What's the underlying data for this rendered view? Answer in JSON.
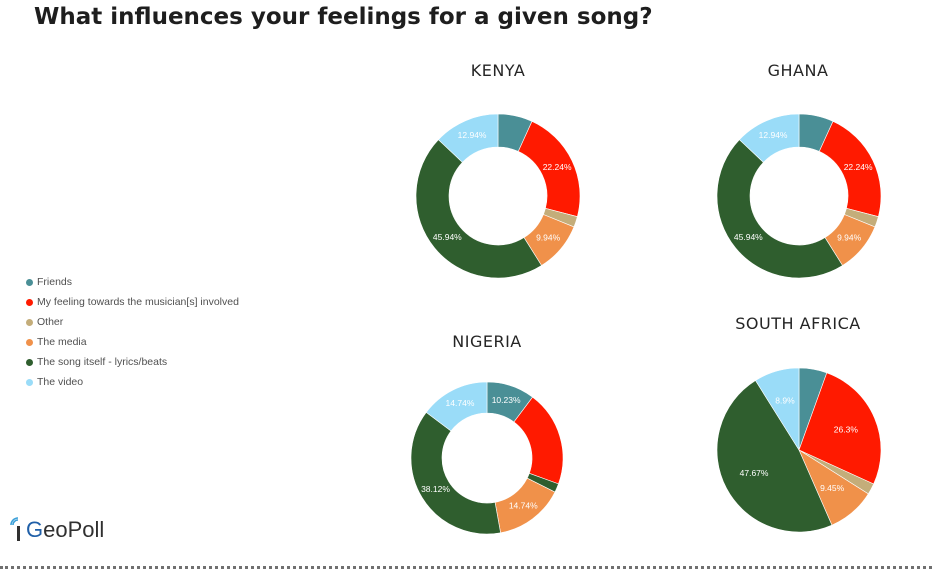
{
  "title": "What influences your feelings for a given song?",
  "legend": [
    {
      "label": "Friends",
      "color": "#4a8f96"
    },
    {
      "label": "My feeling towards the musician[s] involved",
      "color": "#ff1a00"
    },
    {
      "label": "Other",
      "color": "#c4ad7a"
    },
    {
      "label": "The media",
      "color": "#f0914a"
    },
    {
      "label": "The song itself - lyrics/beats",
      "color": "#2f5e2e"
    },
    {
      "label": "The video",
      "color": "#9adcf8"
    }
  ],
  "logo": {
    "prefix": "G",
    "rest": "eoPoll"
  },
  "chart_data": [
    {
      "type": "pie",
      "donut": true,
      "title": "KENYA",
      "categories": [
        "Friends",
        "My feeling towards the musician[s] involved",
        "Other",
        "The media",
        "The song itself - lyrics/beats",
        "The video"
      ],
      "values": [
        6.8,
        22.24,
        2.1,
        9.94,
        45.94,
        12.94
      ],
      "data_labels": [
        "",
        "22.24%",
        "",
        "9.94%",
        "45.94%",
        "12.94%"
      ]
    },
    {
      "type": "pie",
      "donut": true,
      "title": "GHANA",
      "categories": [
        "Friends",
        "My feeling towards the musician[s] involved",
        "Other",
        "The media",
        "The song itself - lyrics/beats",
        "The video"
      ],
      "values": [
        6.8,
        22.24,
        2.1,
        9.94,
        45.94,
        12.94
      ],
      "data_labels": [
        "",
        "22.24%",
        "",
        "9.94%",
        "45.94%",
        "12.94%"
      ]
    },
    {
      "type": "pie",
      "donut": true,
      "title": "NIGERIA",
      "categories": [
        "Friends",
        "My feeling towards the musician[s] involved",
        "The song itself - lyrics/beats",
        "The media",
        "The song itself - lyrics/beats",
        "The video"
      ],
      "values": [
        10.23,
        20.3,
        1.87,
        14.74,
        38.12,
        14.74
      ],
      "data_labels": [
        "10.23%",
        "",
        "",
        "14.74%",
        "38.12%",
        "14.74%"
      ]
    },
    {
      "type": "pie",
      "donut": false,
      "title": "SOUTH AFRICA",
      "categories": [
        "Friends",
        "My feeling towards the musician[s] involved",
        "Other",
        "The media",
        "The song itself - lyrics/beats",
        "The video"
      ],
      "values": [
        5.5,
        26.3,
        2.18,
        9.45,
        47.67,
        8.9
      ],
      "data_labels": [
        "",
        "26.3%",
        "",
        "9.45%",
        "47.67%",
        "8.9%"
      ]
    }
  ]
}
